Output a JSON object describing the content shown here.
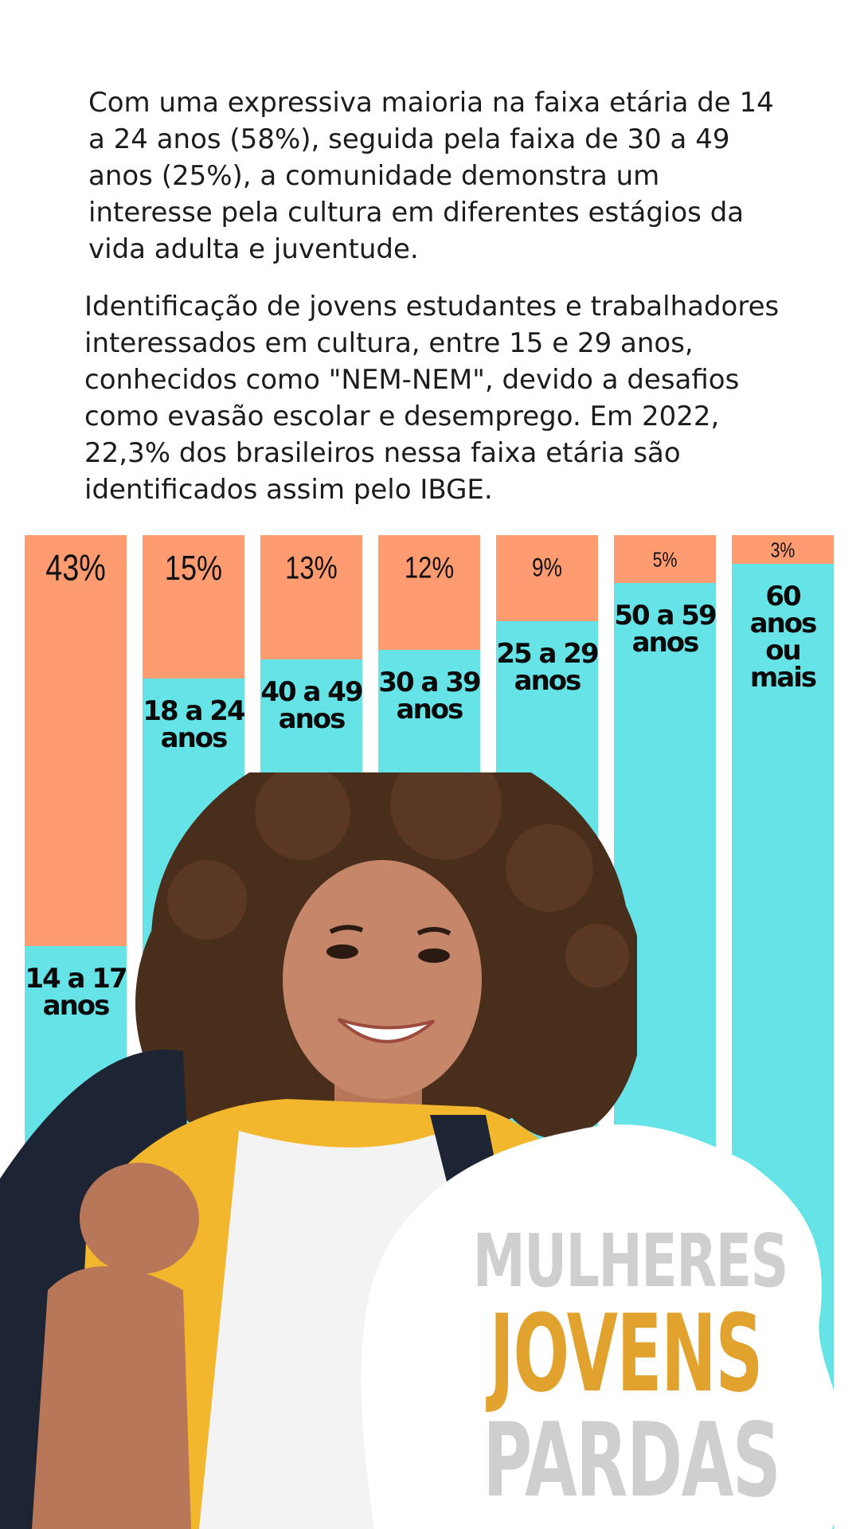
{
  "paragraphs": {
    "p1": "Com uma expressiva maioria na faixa etária de 14 a 24 anos (58%), seguida pela faixa de 30 a 49 anos (25%), a comunidade demonstra um interesse pela cultura em diferentes estágios da vida adulta e juventude.",
    "p2": "Identificação de jovens estudantes e trabalhadores interessados em cultura, entre 15 e 29 anos, conhecidos como \"NEM-NEM\", devido a desafios como evasão escolar e desemprego. Em 2022, 22,3% dos brasileiros nessa faixa etária são identificados assim pelo IBGE."
  },
  "chart_data": {
    "type": "bar",
    "orientation": "vertical",
    "categories": [
      "14 a 17 anos",
      "18 a 24 anos",
      "40 a 49 anos",
      "30 a 39 anos",
      "25 a 29 anos",
      "50 a 59 anos",
      "60 anos ou mais"
    ],
    "category_lines": [
      [
        "14 a 17",
        "anos"
      ],
      [
        "18 a 24",
        "anos"
      ],
      [
        "40 a 49",
        "anos"
      ],
      [
        "30 a 39",
        "anos"
      ],
      [
        "25 a 29",
        "anos"
      ],
      [
        "50 a 59",
        "anos"
      ],
      [
        "60",
        "anos",
        "ou",
        "mais"
      ]
    ],
    "values": [
      43,
      15,
      13,
      12,
      9,
      5,
      3
    ],
    "value_labels": [
      "43%",
      "15%",
      "13%",
      "12%",
      "9%",
      "5%",
      "3%"
    ],
    "ylim": [
      0,
      100
    ],
    "colors": {
      "value": "#ff9b71",
      "remainder": "#66e3e6"
    }
  },
  "title": {
    "line1": "MULHERES",
    "line2": "JOVENS",
    "line3": "PARDAS"
  },
  "colors": {
    "title_gray": "#cfcfcf",
    "title_gold": "#e2a32e",
    "text": "#1c1c1c"
  }
}
